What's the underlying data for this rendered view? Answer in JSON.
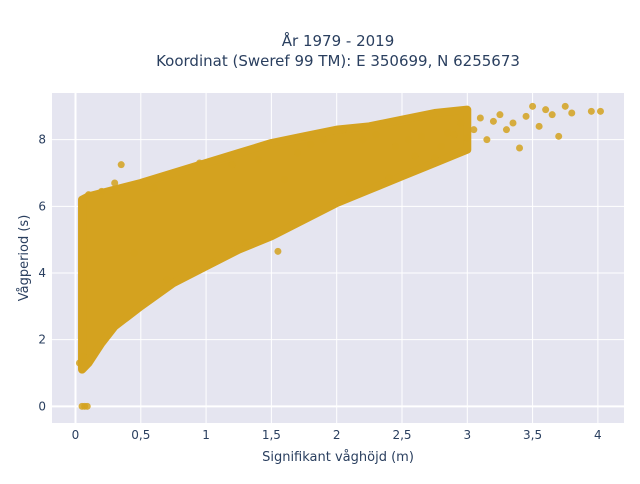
{
  "chart_data": {
    "type": "scatter",
    "title": "År 1979 - 2019",
    "subtitle": "Koordinat (Sweref 99 TM): E 350699, N 6255673",
    "xlabel": "Signifikant våghöjd (m)",
    "ylabel": "Vågperiod (s)",
    "xlim": [
      -0.18,
      4.2
    ],
    "ylim": [
      -0.5,
      9.4
    ],
    "x_ticks": [
      0,
      0.5,
      1,
      1.5,
      2,
      2.5,
      3,
      3.5,
      4
    ],
    "x_tick_labels": [
      "0",
      "0,5",
      "1",
      "1,5",
      "2",
      "2,5",
      "3",
      "3,5",
      "4"
    ],
    "y_ticks": [
      0,
      2,
      4,
      6,
      8
    ],
    "y_tick_labels": [
      "0",
      "2",
      "4",
      "6",
      "8"
    ],
    "grid": true,
    "legend": "none",
    "colors": {
      "marker": "#d4a21f",
      "plot_bg": "#e5e5f0",
      "grid": "#ffffff",
      "text": "#2a3f5f"
    },
    "density_envelope": {
      "x": [
        0.05,
        0.1,
        0.2,
        0.3,
        0.5,
        0.75,
        1.0,
        1.25,
        1.5,
        1.75,
        2.0,
        2.25,
        2.5,
        2.75,
        3.0
      ],
      "y_low": [
        1.1,
        1.3,
        1.9,
        2.4,
        3.0,
        3.7,
        4.2,
        4.7,
        5.1,
        5.6,
        6.1,
        6.5,
        6.9,
        7.3,
        7.7
      ],
      "y_high": [
        6.2,
        6.3,
        6.4,
        6.5,
        6.7,
        7.0,
        7.3,
        7.6,
        7.9,
        8.1,
        8.3,
        8.4,
        8.6,
        8.8,
        8.9
      ]
    },
    "points": [
      {
        "x": 0.05,
        "y": 0.0
      },
      {
        "x": 0.07,
        "y": 0.0
      },
      {
        "x": 0.09,
        "y": 0.0
      },
      {
        "x": 0.03,
        "y": 1.3
      },
      {
        "x": 0.06,
        "y": 1.5
      },
      {
        "x": 0.35,
        "y": 7.25
      },
      {
        "x": 0.3,
        "y": 6.7
      },
      {
        "x": 0.95,
        "y": 7.3
      },
      {
        "x": 0.45,
        "y": 4.6
      },
      {
        "x": 0.7,
        "y": 3.8
      },
      {
        "x": 1.05,
        "y": 4.3
      },
      {
        "x": 1.3,
        "y": 4.9
      },
      {
        "x": 1.55,
        "y": 4.65
      },
      {
        "x": 1.6,
        "y": 6.8
      },
      {
        "x": 1.8,
        "y": 7.85
      },
      {
        "x": 2.1,
        "y": 6.4
      },
      {
        "x": 2.2,
        "y": 8.0
      },
      {
        "x": 2.4,
        "y": 6.85
      },
      {
        "x": 2.45,
        "y": 7.8
      },
      {
        "x": 2.55,
        "y": 8.0
      },
      {
        "x": 2.6,
        "y": 7.5
      },
      {
        "x": 2.65,
        "y": 8.1
      },
      {
        "x": 2.75,
        "y": 7.45
      },
      {
        "x": 2.8,
        "y": 7.8
      },
      {
        "x": 2.85,
        "y": 8.2
      },
      {
        "x": 2.9,
        "y": 8.15
      },
      {
        "x": 2.95,
        "y": 8.5
      },
      {
        "x": 3.0,
        "y": 8.05
      },
      {
        "x": 3.05,
        "y": 8.3
      },
      {
        "x": 3.1,
        "y": 8.65
      },
      {
        "x": 3.15,
        "y": 8.0
      },
      {
        "x": 3.2,
        "y": 8.55
      },
      {
        "x": 3.25,
        "y": 8.75
      },
      {
        "x": 3.3,
        "y": 8.3
      },
      {
        "x": 3.35,
        "y": 8.5
      },
      {
        "x": 3.4,
        "y": 7.75
      },
      {
        "x": 3.45,
        "y": 8.7
      },
      {
        "x": 3.5,
        "y": 9.0
      },
      {
        "x": 3.55,
        "y": 8.4
      },
      {
        "x": 3.6,
        "y": 8.9
      },
      {
        "x": 3.65,
        "y": 8.75
      },
      {
        "x": 3.7,
        "y": 8.1
      },
      {
        "x": 3.75,
        "y": 9.0
      },
      {
        "x": 3.8,
        "y": 8.8
      },
      {
        "x": 3.95,
        "y": 8.85
      },
      {
        "x": 4.02,
        "y": 8.85
      },
      {
        "x": 2.3,
        "y": 8.15
      },
      {
        "x": 2.05,
        "y": 8.3
      },
      {
        "x": 1.9,
        "y": 8.0
      },
      {
        "x": 1.7,
        "y": 7.6
      },
      {
        "x": 1.4,
        "y": 7.4
      },
      {
        "x": 1.2,
        "y": 7.25
      },
      {
        "x": 0.6,
        "y": 6.55
      },
      {
        "x": 0.2,
        "y": 6.45
      },
      {
        "x": 0.1,
        "y": 6.35
      }
    ]
  }
}
